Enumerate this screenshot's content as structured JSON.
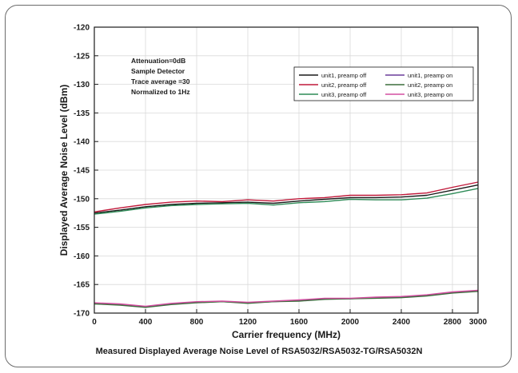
{
  "caption": "Measured Displayed Average Noise Level of RSA5032/RSA5032-TG/RSA5032N",
  "chart_data": {
    "type": "line",
    "title": "",
    "xlabel": "Carrier frequency  (MHz)",
    "ylabel": "Displayed Average Noise Level (dBm)",
    "xlim": [
      0,
      3000
    ],
    "ylim": [
      -170,
      -120
    ],
    "xticks": [
      0,
      400,
      800,
      1200,
      1600,
      2000,
      2400,
      2800,
      3000
    ],
    "yticks": [
      -120,
      -125,
      -130,
      -135,
      -140,
      -145,
      -150,
      -155,
      -160,
      -165,
      -170
    ],
    "ytick_labels": [
      "-120",
      "-125",
      "-130",
      "-135",
      "-140",
      "-145",
      "-150",
      "-155",
      "-160",
      "-165",
      "-170"
    ],
    "grid": true,
    "annotations": [
      "Attenuation=0dB",
      "Sample Detector",
      "Trace average =30",
      "Normalized to 1Hz"
    ],
    "legend_position": "top-right",
    "series": [
      {
        "name": "unit1, preamp off",
        "color": "#1a1a1a",
        "x": [
          0,
          200,
          400,
          600,
          800,
          1000,
          1200,
          1400,
          1600,
          1800,
          2000,
          2200,
          2400,
          2600,
          2800,
          3000
        ],
        "y": [
          -152.5,
          -152.0,
          -151.4,
          -151.0,
          -150.8,
          -150.7,
          -150.6,
          -150.8,
          -150.4,
          -150.1,
          -149.8,
          -149.8,
          -149.7,
          -149.4,
          -148.5,
          -147.6
        ]
      },
      {
        "name": "unit2, preamp off",
        "color": "#c0193a",
        "x": [
          0,
          200,
          400,
          600,
          800,
          1000,
          1200,
          1400,
          1600,
          1800,
          2000,
          2200,
          2400,
          2600,
          2800,
          3000
        ],
        "y": [
          -152.3,
          -151.6,
          -151.0,
          -150.6,
          -150.4,
          -150.5,
          -150.2,
          -150.4,
          -150.0,
          -149.8,
          -149.4,
          -149.4,
          -149.3,
          -149.0,
          -148.0,
          -147.1
        ]
      },
      {
        "name": "unit3, preamp off",
        "color": "#2e8b57",
        "x": [
          0,
          200,
          400,
          600,
          800,
          1000,
          1200,
          1400,
          1600,
          1800,
          2000,
          2200,
          2400,
          2600,
          2800,
          3000
        ],
        "y": [
          -152.7,
          -152.2,
          -151.6,
          -151.2,
          -151.0,
          -150.9,
          -150.8,
          -151.1,
          -150.7,
          -150.5,
          -150.1,
          -150.2,
          -150.2,
          -149.9,
          -149.1,
          -148.2
        ]
      },
      {
        "name": "unit1, preamp on",
        "color": "#6a3d9a",
        "x": [
          0,
          200,
          400,
          600,
          800,
          1000,
          1200,
          1400,
          1600,
          1800,
          2000,
          2200,
          2400,
          2600,
          2800,
          3000
        ],
        "y": [
          -168.3,
          -168.5,
          -168.9,
          -168.4,
          -168.1,
          -168.0,
          -168.2,
          -168.0,
          -167.8,
          -167.5,
          -167.5,
          -167.3,
          -167.2,
          -166.9,
          -166.4,
          -166.1
        ]
      },
      {
        "name": "unit2, preamp on",
        "color": "#3c6e3c",
        "x": [
          0,
          200,
          400,
          600,
          800,
          1000,
          1200,
          1400,
          1600,
          1800,
          2000,
          2200,
          2400,
          2600,
          2800,
          3000
        ],
        "y": [
          -168.4,
          -168.6,
          -169.0,
          -168.5,
          -168.2,
          -168.0,
          -168.3,
          -168.0,
          -167.9,
          -167.6,
          -167.5,
          -167.4,
          -167.3,
          -167.0,
          -166.5,
          -166.2
        ]
      },
      {
        "name": "unit3, preamp on",
        "color": "#d44fa0",
        "x": [
          0,
          200,
          400,
          600,
          800,
          1000,
          1200,
          1400,
          1600,
          1800,
          2000,
          2200,
          2400,
          2600,
          2800,
          3000
        ],
        "y": [
          -168.2,
          -168.4,
          -168.8,
          -168.3,
          -168.0,
          -167.9,
          -168.1,
          -167.9,
          -167.7,
          -167.4,
          -167.4,
          -167.2,
          -167.1,
          -166.8,
          -166.3,
          -166.0
        ]
      }
    ]
  }
}
